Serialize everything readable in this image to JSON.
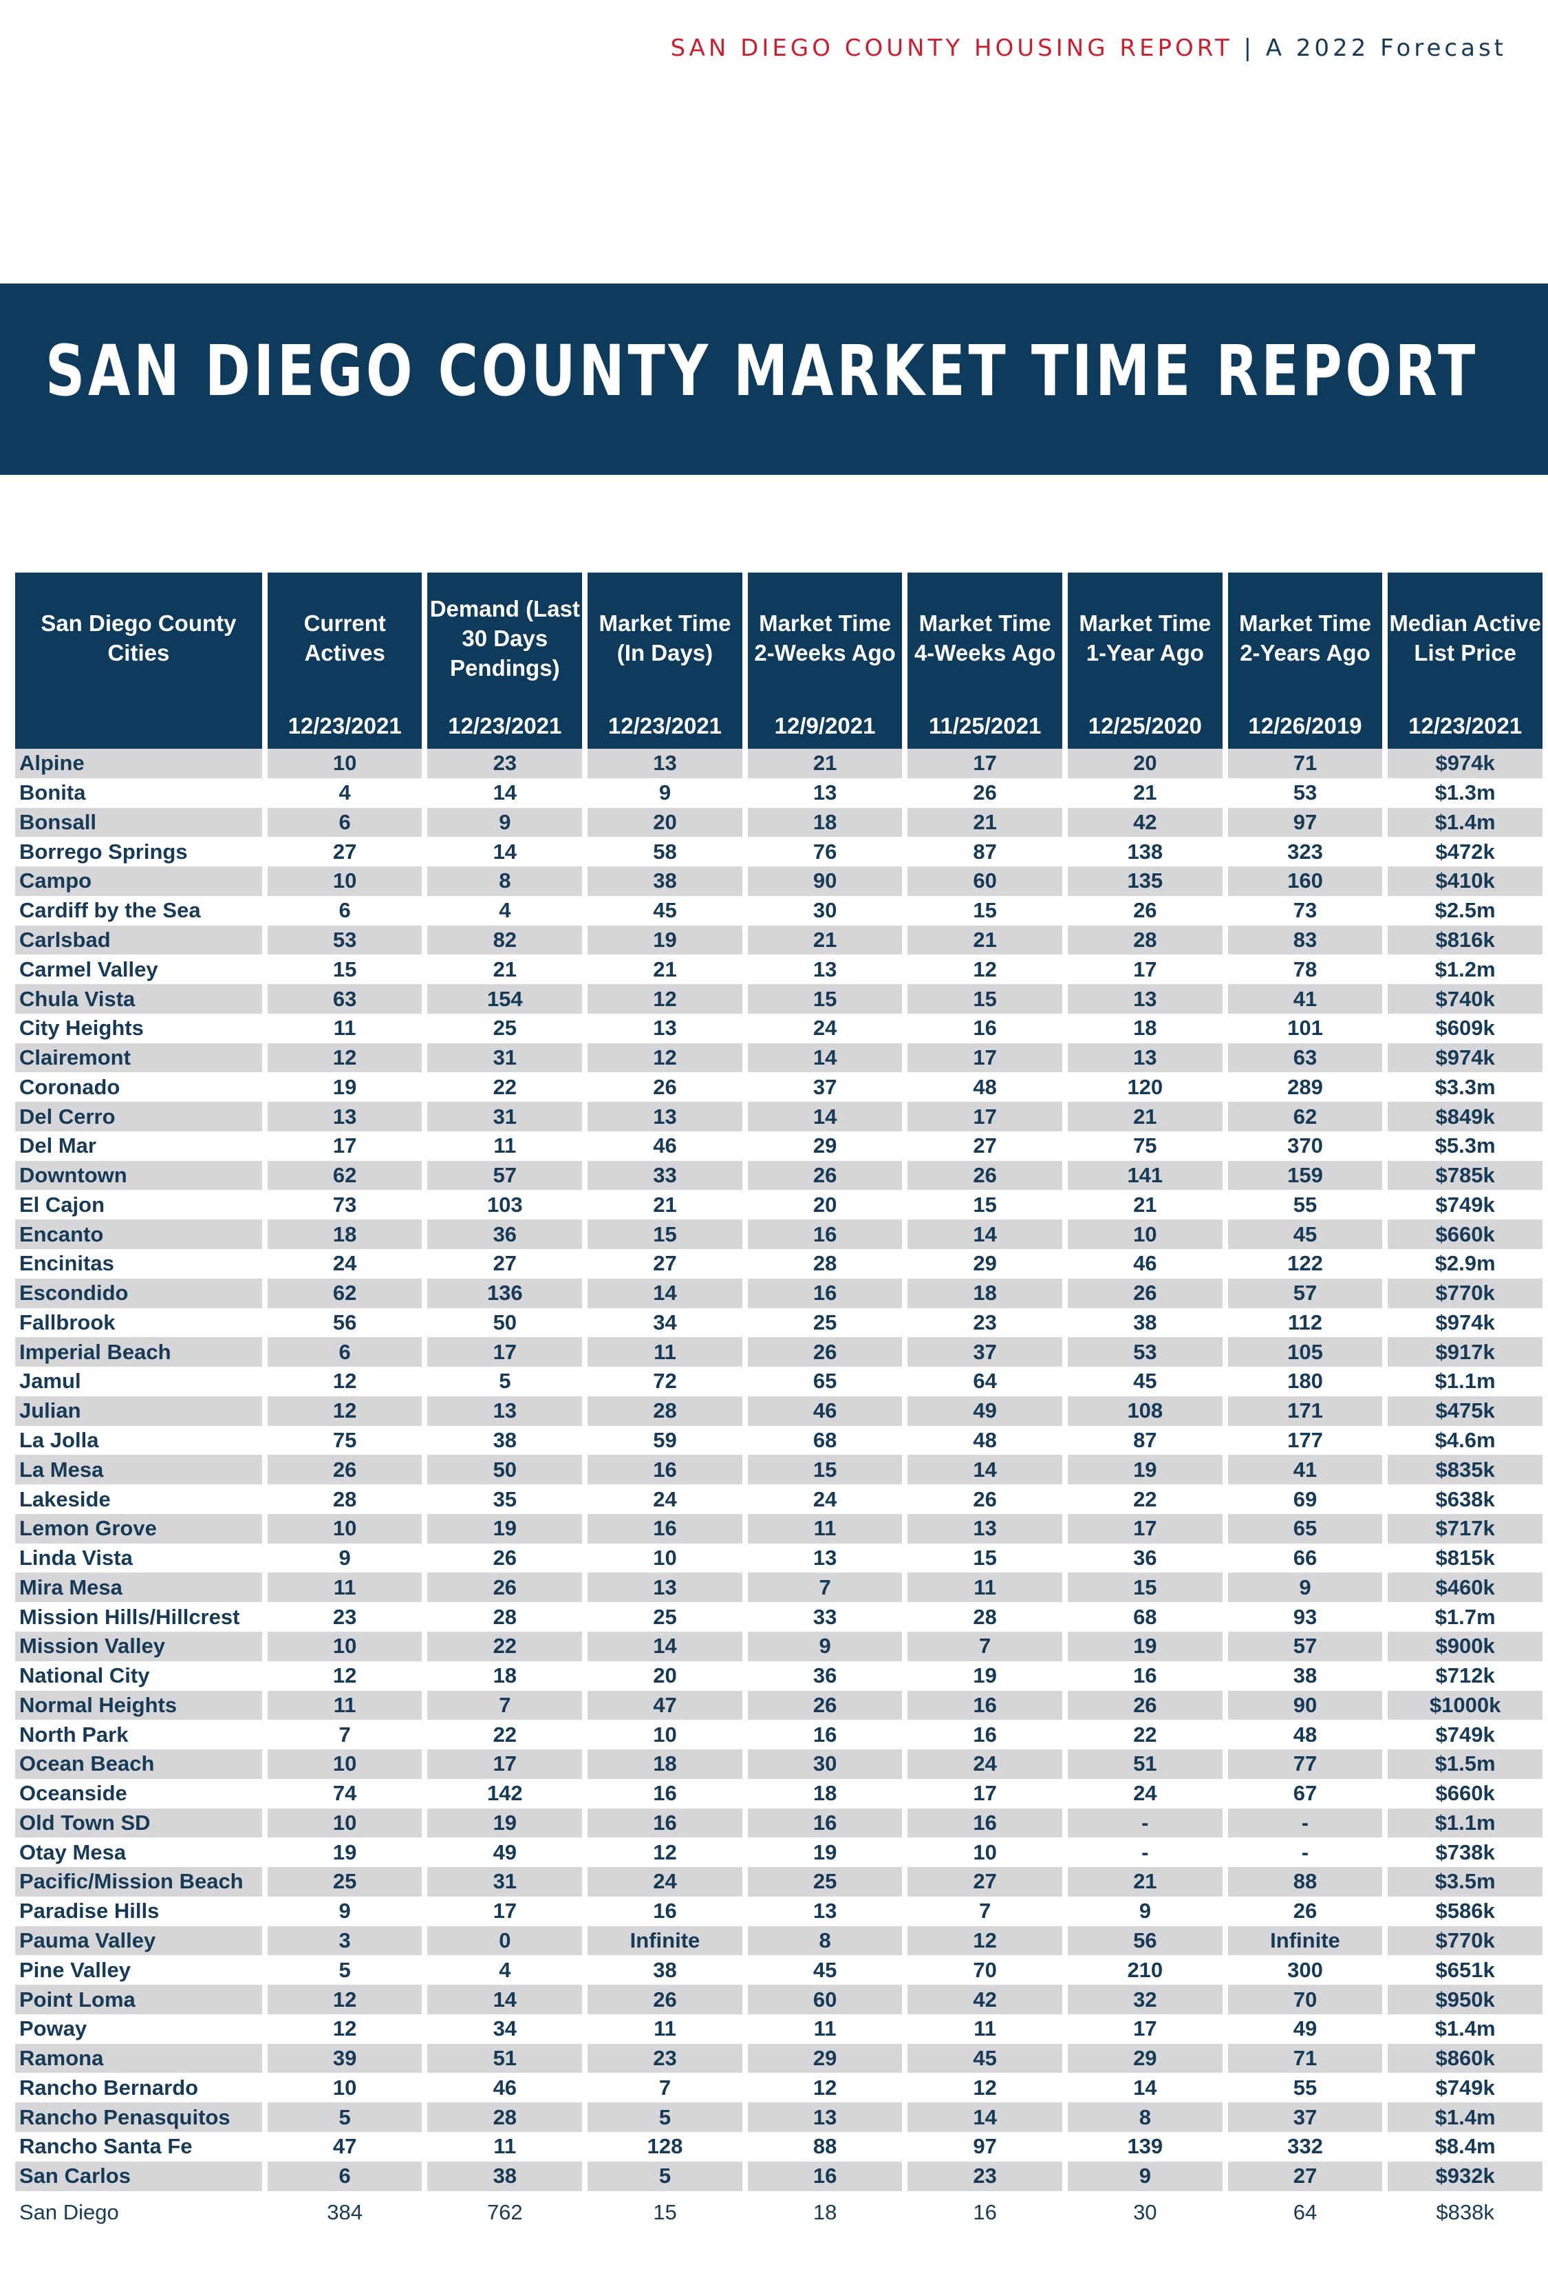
{
  "header": {
    "report_name": "SAN DIEGO COUNTY HOUSING REPORT",
    "separator": " | ",
    "subtitle": "A 2022 Forecast"
  },
  "title": "SAN DIEGO COUNTY MARKET TIME REPORT",
  "table": {
    "columns": [
      {
        "label": "San Diego County Cities",
        "date": ""
      },
      {
        "label": "Current Actives",
        "date": "12/23/2021"
      },
      {
        "label": "Demand (Last 30 Days Pendings)",
        "date": "12/23/2021"
      },
      {
        "label": "Market Time (In Days)",
        "date": "12/23/2021"
      },
      {
        "label": "Market Time 2-Weeks Ago",
        "date": "12/9/2021"
      },
      {
        "label": "Market Time 4-Weeks Ago",
        "date": "11/25/2021"
      },
      {
        "label": "Market Time 1-Year Ago",
        "date": "12/25/2020"
      },
      {
        "label": "Market Time 2-Years Ago",
        "date": "12/26/2019"
      },
      {
        "label": "Median Active List Price",
        "date": "12/23/2021"
      }
    ],
    "rows": [
      [
        "Alpine",
        "10",
        "23",
        "13",
        "21",
        "17",
        "20",
        "71",
        "$974k"
      ],
      [
        "Bonita",
        "4",
        "14",
        "9",
        "13",
        "26",
        "21",
        "53",
        "$1.3m"
      ],
      [
        "Bonsall",
        "6",
        "9",
        "20",
        "18",
        "21",
        "42",
        "97",
        "$1.4m"
      ],
      [
        "Borrego Springs",
        "27",
        "14",
        "58",
        "76",
        "87",
        "138",
        "323",
        "$472k"
      ],
      [
        "Campo",
        "10",
        "8",
        "38",
        "90",
        "60",
        "135",
        "160",
        "$410k"
      ],
      [
        "Cardiff by the Sea",
        "6",
        "4",
        "45",
        "30",
        "15",
        "26",
        "73",
        "$2.5m"
      ],
      [
        "Carlsbad",
        "53",
        "82",
        "19",
        "21",
        "21",
        "28",
        "83",
        "$816k"
      ],
      [
        "Carmel Valley",
        "15",
        "21",
        "21",
        "13",
        "12",
        "17",
        "78",
        "$1.2m"
      ],
      [
        "Chula Vista",
        "63",
        "154",
        "12",
        "15",
        "15",
        "13",
        "41",
        "$740k"
      ],
      [
        "City Heights",
        "11",
        "25",
        "13",
        "24",
        "16",
        "18",
        "101",
        "$609k"
      ],
      [
        "Clairemont",
        "12",
        "31",
        "12",
        "14",
        "17",
        "13",
        "63",
        "$974k"
      ],
      [
        "Coronado",
        "19",
        "22",
        "26",
        "37",
        "48",
        "120",
        "289",
        "$3.3m"
      ],
      [
        "Del Cerro",
        "13",
        "31",
        "13",
        "14",
        "17",
        "21",
        "62",
        "$849k"
      ],
      [
        "Del Mar",
        "17",
        "11",
        "46",
        "29",
        "27",
        "75",
        "370",
        "$5.3m"
      ],
      [
        "Downtown",
        "62",
        "57",
        "33",
        "26",
        "26",
        "141",
        "159",
        "$785k"
      ],
      [
        "El Cajon",
        "73",
        "103",
        "21",
        "20",
        "15",
        "21",
        "55",
        "$749k"
      ],
      [
        "Encanto",
        "18",
        "36",
        "15",
        "16",
        "14",
        "10",
        "45",
        "$660k"
      ],
      [
        "Encinitas",
        "24",
        "27",
        "27",
        "28",
        "29",
        "46",
        "122",
        "$2.9m"
      ],
      [
        "Escondido",
        "62",
        "136",
        "14",
        "16",
        "18",
        "26",
        "57",
        "$770k"
      ],
      [
        "Fallbrook",
        "56",
        "50",
        "34",
        "25",
        "23",
        "38",
        "112",
        "$974k"
      ],
      [
        "Imperial Beach",
        "6",
        "17",
        "11",
        "26",
        "37",
        "53",
        "105",
        "$917k"
      ],
      [
        "Jamul",
        "12",
        "5",
        "72",
        "65",
        "64",
        "45",
        "180",
        "$1.1m"
      ],
      [
        "Julian",
        "12",
        "13",
        "28",
        "46",
        "49",
        "108",
        "171",
        "$475k"
      ],
      [
        "La Jolla",
        "75",
        "38",
        "59",
        "68",
        "48",
        "87",
        "177",
        "$4.6m"
      ],
      [
        "La Mesa",
        "26",
        "50",
        "16",
        "15",
        "14",
        "19",
        "41",
        "$835k"
      ],
      [
        "Lakeside",
        "28",
        "35",
        "24",
        "24",
        "26",
        "22",
        "69",
        "$638k"
      ],
      [
        "Lemon Grove",
        "10",
        "19",
        "16",
        "11",
        "13",
        "17",
        "65",
        "$717k"
      ],
      [
        "Linda Vista",
        "9",
        "26",
        "10",
        "13",
        "15",
        "36",
        "66",
        "$815k"
      ],
      [
        "Mira Mesa",
        "11",
        "26",
        "13",
        "7",
        "11",
        "15",
        "9",
        "$460k"
      ],
      [
        "Mission Hills/Hillcrest",
        "23",
        "28",
        "25",
        "33",
        "28",
        "68",
        "93",
        "$1.7m"
      ],
      [
        "Mission Valley",
        "10",
        "22",
        "14",
        "9",
        "7",
        "19",
        "57",
        "$900k"
      ],
      [
        "National City",
        "12",
        "18",
        "20",
        "36",
        "19",
        "16",
        "38",
        "$712k"
      ],
      [
        "Normal Heights",
        "11",
        "7",
        "47",
        "26",
        "16",
        "26",
        "90",
        "$1000k"
      ],
      [
        "North Park",
        "7",
        "22",
        "10",
        "16",
        "16",
        "22",
        "48",
        "$749k"
      ],
      [
        "Ocean Beach",
        "10",
        "17",
        "18",
        "30",
        "24",
        "51",
        "77",
        "$1.5m"
      ],
      [
        "Oceanside",
        "74",
        "142",
        "16",
        "18",
        "17",
        "24",
        "67",
        "$660k"
      ],
      [
        "Old Town SD",
        "10",
        "19",
        "16",
        "16",
        "16",
        "-",
        "-",
        "$1.1m"
      ],
      [
        "Otay Mesa",
        "19",
        "49",
        "12",
        "19",
        "10",
        "-",
        "-",
        "$738k"
      ],
      [
        "Pacific/Mission Beach",
        "25",
        "31",
        "24",
        "25",
        "27",
        "21",
        "88",
        "$3.5m"
      ],
      [
        "Paradise Hills",
        "9",
        "17",
        "16",
        "13",
        "7",
        "9",
        "26",
        "$586k"
      ],
      [
        "Pauma Valley",
        "3",
        "0",
        "Infinite",
        "8",
        "12",
        "56",
        "Infinite",
        "$770k"
      ],
      [
        "Pine Valley",
        "5",
        "4",
        "38",
        "45",
        "70",
        "210",
        "300",
        "$651k"
      ],
      [
        "Point Loma",
        "12",
        "14",
        "26",
        "60",
        "42",
        "32",
        "70",
        "$950k"
      ],
      [
        "Poway",
        "12",
        "34",
        "11",
        "11",
        "11",
        "17",
        "49",
        "$1.4m"
      ],
      [
        "Ramona",
        "39",
        "51",
        "23",
        "29",
        "45",
        "29",
        "71",
        "$860k"
      ],
      [
        "Rancho Bernardo",
        "10",
        "46",
        "7",
        "12",
        "12",
        "14",
        "55",
        "$749k"
      ],
      [
        "Rancho Penasquitos",
        "5",
        "28",
        "5",
        "13",
        "14",
        "8",
        "37",
        "$1.4m"
      ],
      [
        "Rancho Santa Fe",
        "47",
        "11",
        "128",
        "88",
        "97",
        "139",
        "332",
        "$8.4m"
      ],
      [
        "San Carlos",
        "6",
        "38",
        "5",
        "16",
        "23",
        "9",
        "27",
        "$932k"
      ],
      [
        "San Diego",
        "384",
        "762",
        "15",
        "18",
        "16",
        "30",
        "64",
        "$838k"
      ]
    ]
  },
  "colors": {
    "navy": "#0e3a5c",
    "accent_red": "#c8202f",
    "row_shade": "#d6d6d8",
    "text": "#173a57"
  }
}
